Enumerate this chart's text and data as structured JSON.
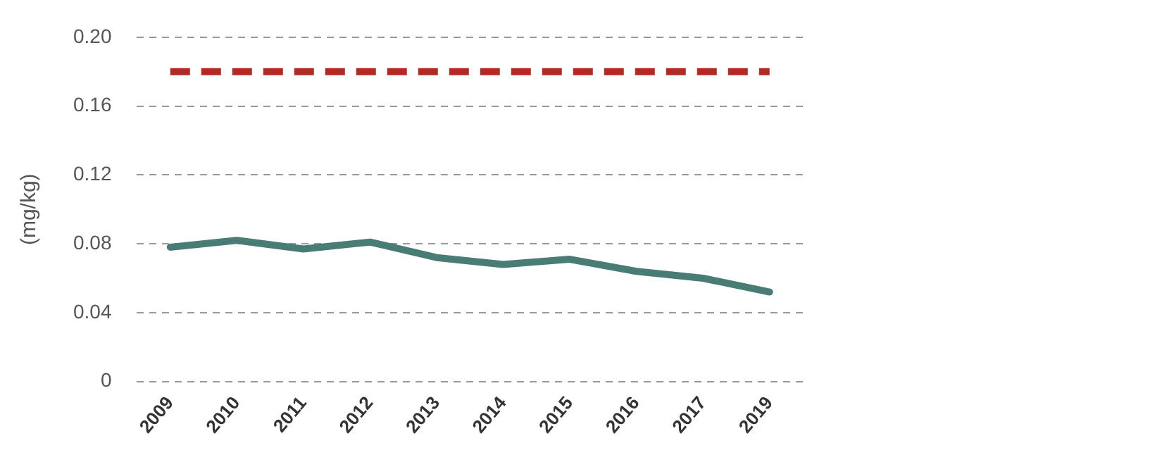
{
  "chart_data": {
    "type": "line",
    "ylabel": "(mg/kg)",
    "categories": [
      "2009",
      "2010",
      "2011",
      "2012",
      "2013",
      "2014",
      "2015",
      "2016",
      "2017",
      "2019"
    ],
    "series": [
      {
        "color": "#4a7c76",
        "values": [
          0.078,
          0.082,
          0.077,
          0.081,
          0.072,
          0.068,
          0.071,
          0.064,
          0.06,
          0.052
        ]
      }
    ],
    "ylim": [
      0,
      0.2
    ],
    "yticks": [
      0,
      0.04,
      0.08,
      0.12,
      0.16,
      {
        "value": 0.2,
        "label": "0.20"
      }
    ],
    "ref_lines": [
      {
        "axis": "y",
        "value": 0.18,
        "color": "#b22a22",
        "line_style": "dashed"
      }
    ],
    "grid": "y",
    "legend": false,
    "marker": "none",
    "line_style": "solid"
  }
}
